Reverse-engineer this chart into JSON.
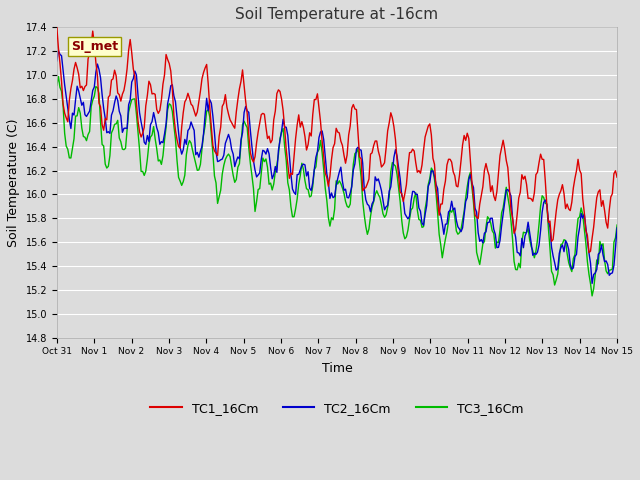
{
  "title": "Soil Temperature at -16cm",
  "xlabel": "Time",
  "ylabel": "Soil Temperature (C)",
  "ylim": [
    14.8,
    17.4
  ],
  "background_color": "#dcdcdc",
  "plot_bg_color": "#dcdcdc",
  "grid_color": "#ffffff",
  "series": {
    "TC1_16Cm": {
      "color": "#dd0000",
      "label": "TC1_16Cm"
    },
    "TC2_16Cm": {
      "color": "#0000cc",
      "label": "TC2_16Cm"
    },
    "TC3_16Cm": {
      "color": "#00bb00",
      "label": "TC3_16Cm"
    }
  },
  "xtick_labels": [
    "Oct 31",
    "Nov 1",
    "Nov 2",
    "Nov 3",
    "Nov 4",
    "Nov 5",
    "Nov 6",
    "Nov 7",
    "Nov 8",
    "Nov 9",
    "Nov 10",
    "Nov 11",
    "Nov 12",
    "Nov 13",
    "Nov 14",
    "Nov 15"
  ],
  "ytick_labels": [
    "14.8",
    "15.0",
    "15.2",
    "15.4",
    "15.6",
    "15.8",
    "16.0",
    "16.2",
    "16.4",
    "16.6",
    "16.8",
    "17.0",
    "17.2",
    "17.4"
  ],
  "ytick_vals": [
    14.8,
    15.0,
    15.2,
    15.4,
    15.6,
    15.8,
    16.0,
    16.2,
    16.4,
    16.6,
    16.8,
    17.0,
    17.2,
    17.4
  ],
  "annotation_text": "SI_met",
  "annotation_bg": "#ffffcc",
  "annotation_border": "#999900"
}
